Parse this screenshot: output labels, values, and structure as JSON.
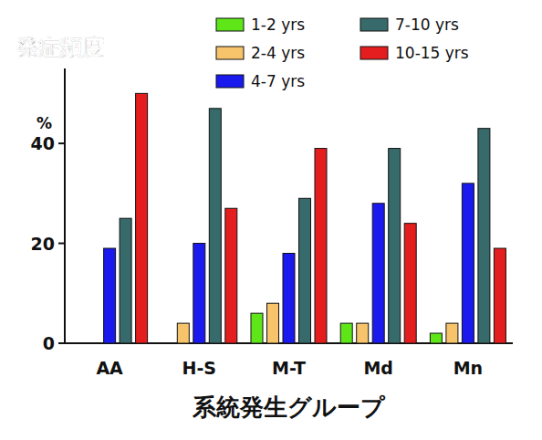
{
  "chart_data": {
    "type": "bar",
    "title": "発症頻度",
    "y_label": "%",
    "x_label": "系統発生グループ",
    "categories": [
      "AA",
      "H-S",
      "M-T",
      "Md",
      "Mn"
    ],
    "series": [
      {
        "name": "1-2 yrs",
        "color": "#5ee619",
        "values": [
          0,
          0,
          6,
          4,
          2
        ]
      },
      {
        "name": "2-4 yrs",
        "color": "#f7c46c",
        "values": [
          0,
          4,
          8,
          4,
          4
        ]
      },
      {
        "name": "4-7 yrs",
        "color": "#1a1aef",
        "values": [
          19,
          20,
          18,
          28,
          32
        ]
      },
      {
        "name": "7-10 yrs",
        "color": "#376b6b",
        "values": [
          25,
          47,
          29,
          39,
          43
        ]
      },
      {
        "name": "10-15 yrs",
        "color": "#e41e1e",
        "values": [
          50,
          27,
          39,
          24,
          19
        ]
      }
    ],
    "ylim": [
      0,
      55
    ],
    "yticks": [
      0,
      20,
      40
    ],
    "grid": false,
    "legend": "top"
  }
}
